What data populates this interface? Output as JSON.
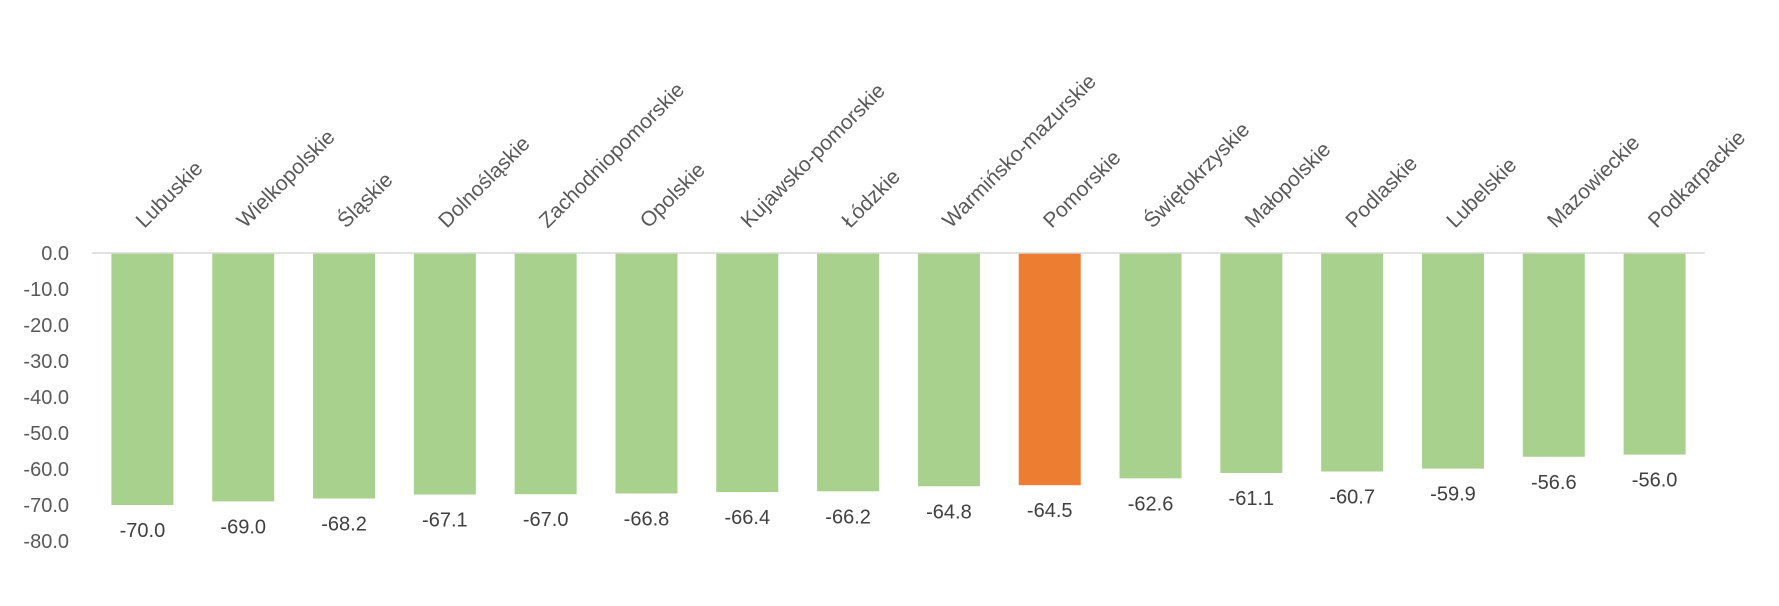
{
  "chart_data": {
    "type": "bar",
    "title": "",
    "xlabel": "",
    "ylabel": "",
    "ylim": [
      -80,
      0
    ],
    "yticks": [
      "0.0",
      "-10.0",
      "-20.0",
      "-30.0",
      "-40.0",
      "-50.0",
      "-60.0",
      "-70.0",
      "-80.0"
    ],
    "categories": [
      "Lubuskie",
      "Wielkopolskie",
      "Śląskie",
      "Dolnośląskie",
      "Zachodniopomorskie",
      "Opolskie",
      "Kujawsko-pomorskie",
      "Łódzkie",
      "Warmińsko-mazurskie",
      "Pomorskie",
      "Świętokrzyskie",
      "Małopolskie",
      "Podlaskie",
      "Lubelskie",
      "Mazowieckie",
      "Podkarpackie"
    ],
    "values": [
      -70.0,
      -69.0,
      -68.2,
      -67.1,
      -67.0,
      -66.8,
      -66.4,
      -66.2,
      -64.8,
      -64.5,
      -62.6,
      -61.1,
      -60.7,
      -59.9,
      -56.6,
      -56.0
    ],
    "value_labels": [
      "-70.0",
      "-69.0",
      "-68.2",
      "-67.1",
      "-67.0",
      "-66.8",
      "-66.4",
      "-66.2",
      "-64.8",
      "-64.5",
      "-62.6",
      "-61.1",
      "-60.7",
      "-59.9",
      "-56.6",
      "-56.0"
    ],
    "highlight_category": "Pomorskie",
    "colors": {
      "bar": "#A9D18E",
      "highlight": "#ED7D31",
      "axis": "#D9D9D9"
    },
    "grid": false,
    "legend": "none"
  }
}
